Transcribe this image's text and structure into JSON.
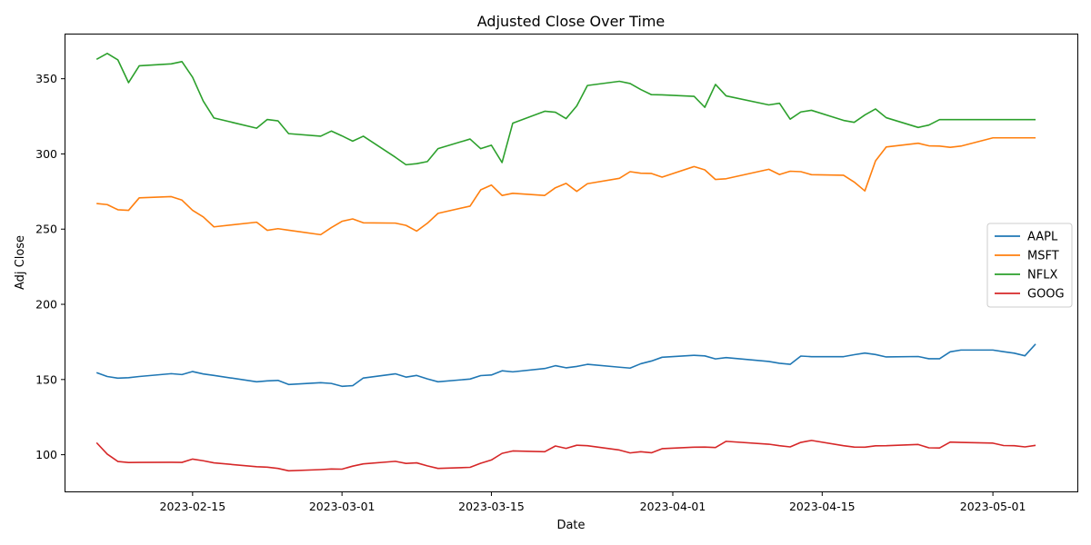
{
  "chart_data": {
    "type": "line",
    "title": "Adjusted Close Over Time",
    "xlabel": "Date",
    "ylabel": "Adj Close",
    "ylim": [
      75,
      380
    ],
    "xlim": [
      "2023-02-03",
      "2023-05-09"
    ],
    "yticks": [
      100,
      150,
      200,
      250,
      300,
      350
    ],
    "xticks": [
      "2023-02-15",
      "2023-03-01",
      "2023-03-15",
      "2023-04-01",
      "2023-04-15",
      "2023-05-01"
    ],
    "grid": false,
    "legend_position": "center-right",
    "x": [
      "2023-02-06",
      "2023-02-07",
      "2023-02-08",
      "2023-02-09",
      "2023-02-10",
      "2023-02-13",
      "2023-02-14",
      "2023-02-15",
      "2023-02-16",
      "2023-02-17",
      "2023-02-21",
      "2023-02-22",
      "2023-02-23",
      "2023-02-24",
      "2023-02-27",
      "2023-02-28",
      "2023-03-01",
      "2023-03-02",
      "2023-03-03",
      "2023-03-06",
      "2023-03-07",
      "2023-03-08",
      "2023-03-09",
      "2023-03-10",
      "2023-03-13",
      "2023-03-14",
      "2023-03-15",
      "2023-03-16",
      "2023-03-17",
      "2023-03-20",
      "2023-03-21",
      "2023-03-22",
      "2023-03-23",
      "2023-03-24",
      "2023-03-27",
      "2023-03-28",
      "2023-03-29",
      "2023-03-30",
      "2023-03-31",
      "2023-04-03",
      "2023-04-04",
      "2023-04-05",
      "2023-04-06",
      "2023-04-10",
      "2023-04-11",
      "2023-04-12",
      "2023-04-13",
      "2023-04-14",
      "2023-04-17",
      "2023-04-18",
      "2023-04-19",
      "2023-04-20",
      "2023-04-21",
      "2023-04-24",
      "2023-04-25",
      "2023-04-26",
      "2023-04-27",
      "2023-04-28",
      "2023-05-01",
      "2023-05-02",
      "2023-05-03",
      "2023-05-04",
      "2023-05-05"
    ],
    "series": [
      {
        "name": "AAPL",
        "color": "#1f77b4",
        "values": [
          154.6,
          152.0,
          150.9,
          151.2,
          152.0,
          153.9,
          153.3,
          155.3,
          153.7,
          152.7,
          148.5,
          149.1,
          149.4,
          146.7,
          147.9,
          147.4,
          145.5,
          145.9,
          151.0,
          153.8,
          151.6,
          152.7,
          150.4,
          148.5,
          150.3,
          152.6,
          153.0,
          155.8,
          155.1,
          157.3,
          159.2,
          157.8,
          158.7,
          160.1,
          158.2,
          157.6,
          160.5,
          162.3,
          164.8,
          166.1,
          165.7,
          163.7,
          164.6,
          162.0,
          160.8,
          160.1,
          165.6,
          165.2,
          165.2,
          166.5,
          167.6,
          166.6,
          165.0,
          165.3,
          163.8,
          163.8,
          168.4,
          169.6,
          169.6,
          168.5,
          167.5,
          165.8,
          173.6
        ]
      },
      {
        "name": "MSFT",
        "color": "#ff7f0e",
        "values": [
          267.0,
          266.3,
          262.9,
          262.5,
          270.8,
          271.6,
          269.3,
          262.5,
          258.1,
          251.5,
          254.6,
          249.2,
          250.3,
          249.3,
          246.3,
          251.0,
          255.2,
          256.8,
          254.2,
          254.0,
          252.5,
          248.7,
          253.9,
          260.5,
          265.3,
          276.1,
          279.3,
          272.4,
          273.8,
          272.4,
          277.5,
          280.4,
          275.1,
          280.2,
          283.8,
          288.2,
          287.2,
          287.0,
          284.6,
          291.6,
          289.4,
          283.0,
          283.5,
          289.8,
          286.3,
          288.5,
          288.2,
          286.2,
          285.8,
          281.3,
          275.4,
          295.4,
          304.6,
          307.1,
          305.4,
          305.2,
          304.4,
          305.2,
          310.7,
          310.7,
          310.7,
          310.7,
          310.7
        ]
      },
      {
        "name": "NFLX",
        "color": "#2ca02c",
        "values": [
          362.9,
          366.8,
          362.5,
          347.4,
          358.6,
          359.9,
          361.4,
          351.0,
          335.1,
          323.9,
          317.1,
          322.9,
          322.0,
          313.5,
          311.8,
          315.2,
          312.0,
          308.5,
          311.8,
          297.8,
          292.8,
          293.5,
          294.9,
          303.5,
          309.9,
          303.5,
          305.8,
          294.3,
          320.4,
          328.4,
          327.7,
          323.5,
          331.9,
          345.5,
          348.3,
          346.8,
          342.8,
          339.4,
          339.3,
          338.3,
          331.0,
          346.2,
          338.6,
          332.6,
          333.7,
          323.1,
          327.9,
          329.0,
          322.3,
          321.0,
          325.9,
          329.9,
          324.1,
          317.6,
          319.2,
          322.8,
          322.8,
          322.8,
          322.8,
          322.8,
          322.8,
          322.8,
          322.8
        ]
      },
      {
        "name": "GOOG",
        "color": "#d62728",
        "values": [
          108.0,
          100.4,
          95.5,
          94.8,
          94.9,
          95.0,
          94.9,
          97.1,
          96.0,
          94.6,
          92.0,
          91.7,
          90.9,
          89.3,
          90.1,
          90.5,
          90.4,
          92.4,
          93.9,
          95.6,
          94.2,
          94.6,
          92.6,
          90.9,
          91.6,
          94.3,
          96.5,
          100.9,
          102.5,
          102.0,
          105.8,
          104.2,
          106.3,
          106.0,
          103.1,
          101.2,
          102.0,
          101.3,
          104.0,
          105.0,
          105.1,
          104.8,
          108.9,
          107.0,
          106.0,
          105.2,
          108.2,
          109.5,
          106.0,
          105.1,
          105.0,
          105.9,
          106.0,
          106.8,
          104.6,
          104.5,
          108.4,
          108.2,
          107.7,
          106.1,
          106.0,
          105.2,
          106.2
        ]
      }
    ]
  }
}
